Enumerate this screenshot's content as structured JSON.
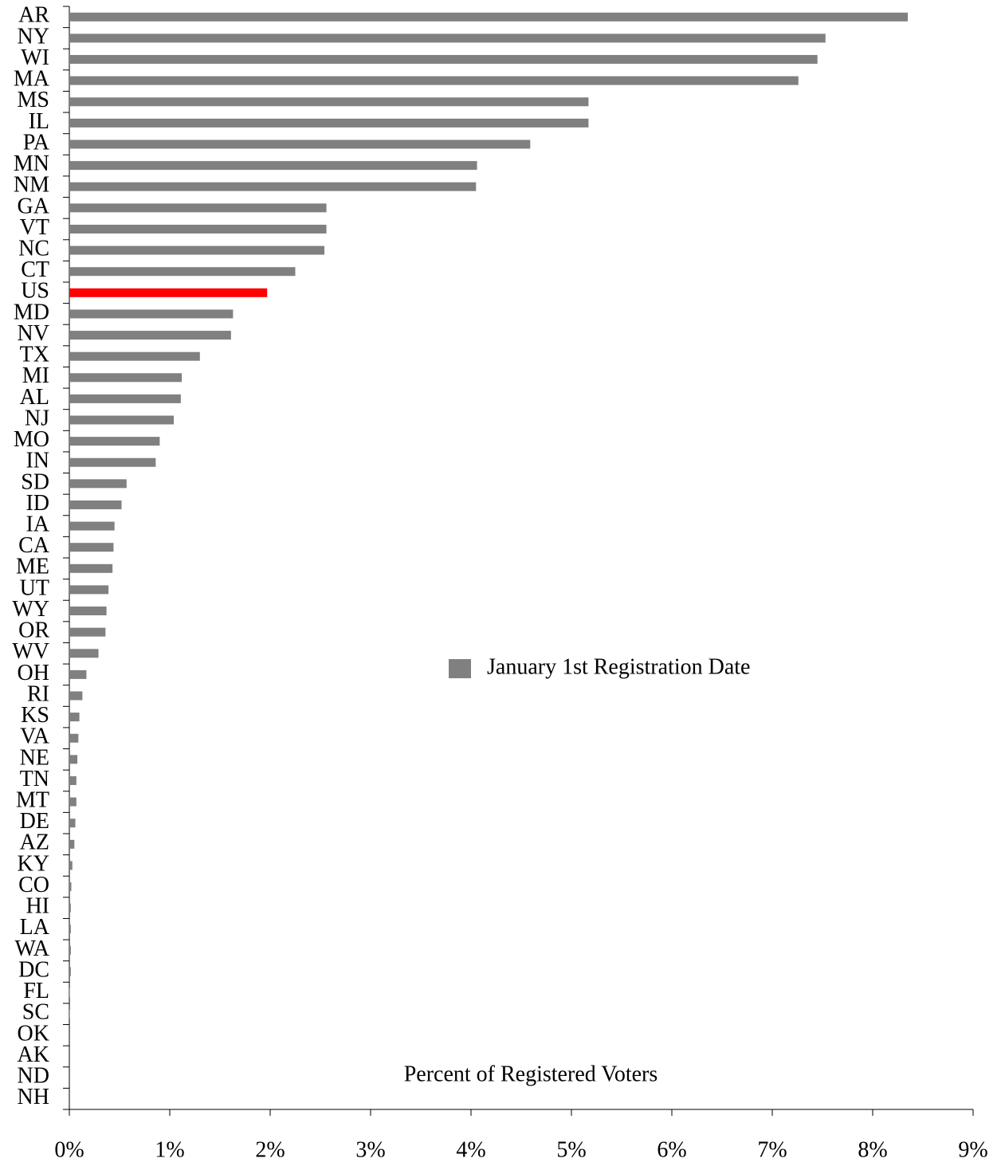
{
  "chart_data": {
    "type": "bar",
    "orientation": "horizontal",
    "x_label": "Percent of Registered Voters",
    "categories": [
      "AR",
      "NY",
      "WI",
      "MA",
      "MS",
      "IL",
      "PA",
      "MN",
      "NM",
      "GA",
      "VT",
      "NC",
      "CT",
      "US",
      "MD",
      "NV",
      "TX",
      "MI",
      "AL",
      "NJ",
      "MO",
      "IN",
      "SD",
      "ID",
      "IA",
      "CA",
      "ME",
      "UT",
      "WY",
      "OR",
      "WV",
      "OH",
      "RI",
      "KS",
      "VA",
      "NE",
      "TN",
      "MT",
      "DE",
      "AZ",
      "KY",
      "CO",
      "HI",
      "LA",
      "WA",
      "DC",
      "FL",
      "SC",
      "OK",
      "AK",
      "ND",
      "NH"
    ],
    "series": [
      {
        "name": "January 1st Registration Date",
        "color": "#808080",
        "values": [
          8.35,
          7.53,
          7.45,
          7.26,
          5.17,
          5.17,
          4.59,
          4.06,
          4.05,
          2.56,
          2.56,
          2.54,
          2.25,
          1.97,
          1.63,
          1.61,
          1.3,
          1.12,
          1.11,
          1.04,
          0.9,
          0.86,
          0.57,
          0.52,
          0.45,
          0.44,
          0.43,
          0.39,
          0.37,
          0.36,
          0.29,
          0.17,
          0.13,
          0.1,
          0.09,
          0.08,
          0.07,
          0.07,
          0.06,
          0.05,
          0.03,
          0.02,
          0.015,
          0.015,
          0.015,
          0.015,
          0.005,
          0.005,
          0,
          0,
          0,
          0
        ]
      }
    ],
    "highlight": {
      "category": "US",
      "color": "#ff0000"
    },
    "xlim": [
      0,
      9
    ],
    "xticks": [
      {
        "value": 0,
        "label": "0%"
      },
      {
        "value": 1,
        "label": "1%"
      },
      {
        "value": 2,
        "label": "2%"
      },
      {
        "value": 3,
        "label": "3%"
      },
      {
        "value": 4,
        "label": "4%"
      },
      {
        "value": 5,
        "label": "5%"
      },
      {
        "value": 6,
        "label": "6%"
      },
      {
        "value": 7,
        "label": "7%"
      },
      {
        "value": 8,
        "label": "8%"
      },
      {
        "value": 9,
        "label": "9%"
      }
    ],
    "grid": false
  }
}
